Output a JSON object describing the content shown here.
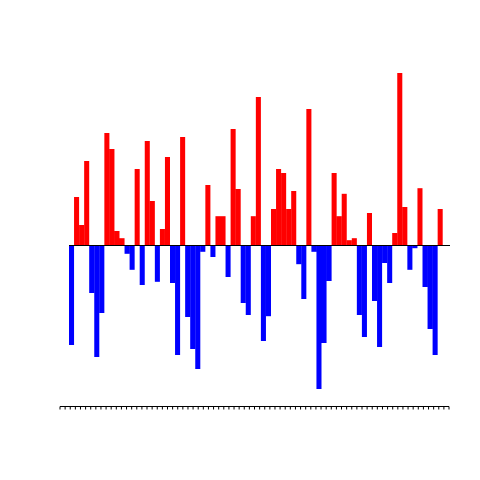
{
  "chart_data": {
    "type": "bar",
    "title": "",
    "xlabel": "",
    "ylabel": "",
    "x": [
      1,
      2,
      3,
      4,
      5,
      6,
      7,
      8,
      9,
      10,
      11,
      12,
      13,
      14,
      15,
      16,
      17,
      18,
      19,
      20,
      21,
      22,
      23,
      24,
      25,
      26,
      27,
      28,
      29,
      30,
      31,
      32,
      33,
      34,
      35,
      36,
      37,
      38,
      39,
      40,
      41,
      42,
      43,
      44,
      45,
      46,
      47,
      48,
      49,
      50,
      51,
      52,
      53,
      54,
      55,
      56,
      57,
      58,
      59,
      60,
      61,
      62,
      63,
      64,
      65,
      66,
      67,
      68,
      69,
      70,
      71,
      72,
      73,
      74,
      75,
      76
    ],
    "values": [
      -2.5,
      1.2,
      0.5,
      2.1,
      -1.2,
      -2.8,
      -1.7,
      2.8,
      2.4,
      0.35,
      0.17,
      -0.22,
      -0.62,
      1.9,
      -1.0,
      2.6,
      1.1,
      -0.92,
      0.4,
      2.2,
      -0.95,
      -2.75,
      2.7,
      -1.8,
      -2.6,
      -3.1,
      -0.17,
      1.5,
      -0.3,
      0.72,
      0.72,
      -0.8,
      2.9,
      1.4,
      -1.45,
      -1.75,
      0.72,
      3.7,
      -2.4,
      -1.78,
      0.9,
      1.9,
      1.8,
      0.9,
      1.35,
      -0.48,
      -1.35,
      3.4,
      -0.17,
      -3.6,
      -2.45,
      -0.9,
      1.8,
      0.72,
      1.28,
      0.12,
      0.17,
      -1.75,
      -2.3,
      0.8,
      -1.4,
      -2.55,
      -0.45,
      -0.95,
      0.3,
      4.3,
      0.95,
      -0.62,
      -0.08,
      1.42,
      -1.05,
      -2.1,
      -2.75,
      0.9,
      0,
      0
    ],
    "ylim": [
      -3.9,
      4.5
    ],
    "positive_color": "#ff0000",
    "negative_color": "#0000ff",
    "baseline": 0,
    "grid": false,
    "legend": "none"
  }
}
